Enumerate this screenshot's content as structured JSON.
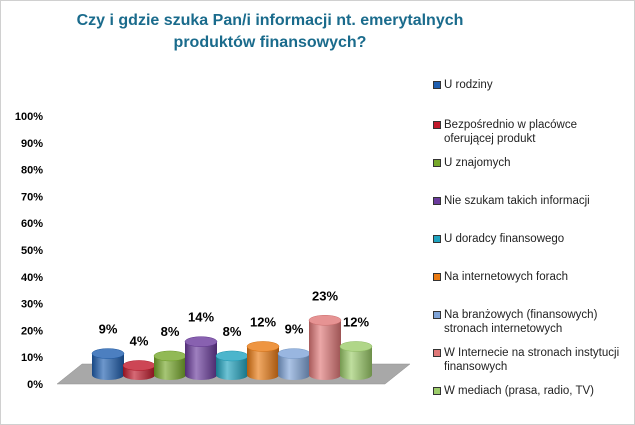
{
  "chart_data": {
    "type": "bar",
    "title": "Czy i gdzie szuka Pan/i informacji nt. emerytalnych produktów finansowych?",
    "categories": [
      "U rodziny",
      "Bezpośrednio w placówce oferującej produkt",
      "U znajomych",
      "Nie szukam takich informacji",
      "U doradcy finansowego",
      "Na internetowych forach",
      "Na branżowych (finansowych) stronach internetowych",
      "W Internecie na stronach instytucji finansowych",
      "W mediach (prasa, radio, TV)"
    ],
    "values": [
      9,
      4,
      8,
      14,
      8,
      12,
      9,
      23,
      12
    ],
    "value_labels": [
      "9%",
      "4%",
      "8%",
      "14%",
      "8%",
      "12%",
      "9%",
      "23%",
      "12%"
    ],
    "colors": [
      "#1f5fb0",
      "#c0182a",
      "#76a82a",
      "#6a3a9c",
      "#1fa3bf",
      "#ea7a12",
      "#7fa4d8",
      "#e07878",
      "#9ccc6a"
    ],
    "ylim": [
      0,
      100
    ],
    "yticks": [
      "0%",
      "10%",
      "20%",
      "30%",
      "40%",
      "50%",
      "60%",
      "70%",
      "80%",
      "90%",
      "100%"
    ],
    "legend_position": "right",
    "grid": false
  },
  "legend": {
    "items": [
      {
        "label": "U rodziny"
      },
      {
        "label": "Bezpośrednio w placówce oferującej produkt"
      },
      {
        "label": "U znajomych"
      },
      {
        "label": "Nie szukam takich informacji"
      },
      {
        "label": "U doradcy finansowego"
      },
      {
        "label": "Na internetowych forach"
      },
      {
        "label": "Na branżowych (finansowych) stronach internetowych"
      },
      {
        "label": "W Internecie na stronach instytucji finansowych"
      },
      {
        "label": "W mediach (prasa, radio, TV)"
      }
    ]
  }
}
